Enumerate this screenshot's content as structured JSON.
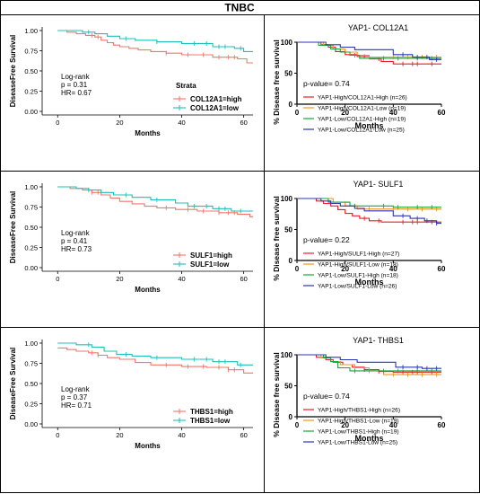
{
  "header": {
    "title": "TNBC"
  },
  "colors": {
    "tcga_high": "#f4756b",
    "tcga_low": "#1fbfb8",
    "red": "#ee1c25",
    "orange": "#f7941d",
    "green": "#16a83a",
    "blue": "#2b35b3"
  },
  "chart_data": [
    {
      "type": "line",
      "subtype": "kaplan-meier",
      "title": "",
      "xlabel": "Months",
      "ylabel": "DiseaseFree Survival",
      "xlim": [
        -5,
        63
      ],
      "ylim": [
        0,
        1.0
      ],
      "xticks": [
        "0",
        "20",
        "40",
        "60"
      ],
      "yticks": [
        "0.00",
        "0.25",
        "0.50",
        "0.75",
        "1.00"
      ],
      "stats": [
        "Log-rank",
        "p = 0.31",
        "HR= 0.67"
      ],
      "legend_title": "Strata",
      "series": [
        {
          "name": "COL12A1=high",
          "color_key": "tcga_high",
          "steps": [
            [
              0,
              1.0
            ],
            [
              3,
              0.98
            ],
            [
              6,
              0.96
            ],
            [
              9,
              0.94
            ],
            [
              12,
              0.92
            ],
            [
              14,
              0.88
            ],
            [
              16,
              0.85
            ],
            [
              18,
              0.82
            ],
            [
              20,
              0.8
            ],
            [
              23,
              0.78
            ],
            [
              26,
              0.76
            ],
            [
              30,
              0.74
            ],
            [
              35,
              0.72
            ],
            [
              40,
              0.7
            ],
            [
              50,
              0.67
            ],
            [
              58,
              0.65
            ],
            [
              61,
              0.6
            ],
            [
              63,
              0.6
            ]
          ]
        },
        {
          "name": "COL12A1=low",
          "color_key": "tcga_low",
          "steps": [
            [
              0,
              1.0
            ],
            [
              8,
              0.98
            ],
            [
              12,
              0.96
            ],
            [
              16,
              0.93
            ],
            [
              20,
              0.9
            ],
            [
              25,
              0.88
            ],
            [
              32,
              0.86
            ],
            [
              40,
              0.84
            ],
            [
              50,
              0.8
            ],
            [
              57,
              0.78
            ],
            [
              60,
              0.74
            ],
            [
              63,
              0.74
            ]
          ]
        }
      ]
    },
    {
      "type": "line",
      "subtype": "kaplan-meier",
      "title": "YAP1- COL12A1",
      "xlabel": "Months",
      "ylabel": "% Disease free survival",
      "xlim": [
        0,
        60
      ],
      "ylim": [
        0,
        100
      ],
      "xticks": [
        "0",
        "20",
        "40",
        "60"
      ],
      "yticks": [
        "0",
        "50",
        "100"
      ],
      "stats": [
        "p-value= 0.74"
      ],
      "series": [
        {
          "name": "YAP1-High/COL12A1-High (n=26)",
          "color_key": "red",
          "steps": [
            [
              0,
              100
            ],
            [
              10,
              96
            ],
            [
              13,
              92
            ],
            [
              16,
              85
            ],
            [
              20,
              80
            ],
            [
              25,
              77
            ],
            [
              30,
              73
            ],
            [
              35,
              69
            ],
            [
              40,
              65
            ],
            [
              60,
              65
            ]
          ]
        },
        {
          "name": "YAP1-High/COL12A1-Low (n=19)",
          "color_key": "orange",
          "steps": [
            [
              0,
              100
            ],
            [
              11,
              95
            ],
            [
              15,
              89
            ],
            [
              20,
              84
            ],
            [
              25,
              79
            ],
            [
              30,
              76
            ],
            [
              60,
              76
            ]
          ]
        },
        {
          "name": "YAP1-Low/COL12A1-High (n=19)",
          "color_key": "green",
          "steps": [
            [
              0,
              100
            ],
            [
              9,
              95
            ],
            [
              14,
              89
            ],
            [
              18,
              84
            ],
            [
              22,
              79
            ],
            [
              26,
              74
            ],
            [
              60,
              74
            ]
          ]
        },
        {
          "name": "YAP1-Low/COL12A1-Low (n=25)",
          "color_key": "blue",
          "steps": [
            [
              0,
              100
            ],
            [
              12,
              96
            ],
            [
              18,
              92
            ],
            [
              24,
              88
            ],
            [
              35,
              88
            ],
            [
              40,
              80
            ],
            [
              48,
              76
            ],
            [
              55,
              72
            ],
            [
              60,
              72
            ]
          ]
        }
      ]
    },
    {
      "type": "line",
      "subtype": "kaplan-meier",
      "title": "",
      "xlabel": "Months",
      "ylabel": "DiseaseFree Survival",
      "xlim": [
        -5,
        63
      ],
      "ylim": [
        0,
        1.0
      ],
      "xticks": [
        "0",
        "20",
        "40",
        "60"
      ],
      "yticks": [
        "0.00",
        "0.25",
        "0.50",
        "0.75",
        "1.00"
      ],
      "stats": [
        "Log-rank",
        "p = 0.41",
        "HR= 0.73"
      ],
      "legend_title": "",
      "series": [
        {
          "name": "SULF1=high",
          "color_key": "tcga_high",
          "steps": [
            [
              0,
              1.0
            ],
            [
              4,
              0.98
            ],
            [
              8,
              0.96
            ],
            [
              11,
              0.93
            ],
            [
              14,
              0.9
            ],
            [
              17,
              0.86
            ],
            [
              20,
              0.82
            ],
            [
              24,
              0.79
            ],
            [
              28,
              0.76
            ],
            [
              32,
              0.74
            ],
            [
              38,
              0.72
            ],
            [
              45,
              0.7
            ],
            [
              52,
              0.68
            ],
            [
              58,
              0.66
            ],
            [
              62,
              0.63
            ],
            [
              63,
              0.63
            ]
          ]
        },
        {
          "name": "SULF1=low",
          "color_key": "tcga_low",
          "steps": [
            [
              0,
              1.0
            ],
            [
              6,
              0.98
            ],
            [
              10,
              0.96
            ],
            [
              14,
              0.93
            ],
            [
              18,
              0.9
            ],
            [
              24,
              0.87
            ],
            [
              30,
              0.84
            ],
            [
              38,
              0.8
            ],
            [
              42,
              0.76
            ],
            [
              50,
              0.73
            ],
            [
              56,
              0.7
            ],
            [
              63,
              0.7
            ]
          ]
        }
      ]
    },
    {
      "type": "line",
      "subtype": "kaplan-meier",
      "title": "YAP1- SULF1",
      "xlabel": "Months",
      "ylabel": "% Disease free survival",
      "xlim": [
        0,
        60
      ],
      "ylim": [
        0,
        100
      ],
      "xticks": [
        "0",
        "20",
        "40",
        "60"
      ],
      "yticks": [
        "0",
        "50",
        "100"
      ],
      "stats": [
        "p-value= 0.22"
      ],
      "series": [
        {
          "name": "YAP1-High/SULF1-High (n=27)",
          "color_key": "red",
          "steps": [
            [
              0,
              100
            ],
            [
              8,
              96
            ],
            [
              11,
              92
            ],
            [
              14,
              88
            ],
            [
              17,
              82
            ],
            [
              20,
              76
            ],
            [
              23,
              72
            ],
            [
              26,
              68
            ],
            [
              30,
              64
            ],
            [
              35,
              62
            ],
            [
              60,
              62
            ]
          ]
        },
        {
          "name": "YAP1-High/SULF1-Low (n=18)",
          "color_key": "orange",
          "steps": [
            [
              0,
              100
            ],
            [
              15,
              94
            ],
            [
              20,
              88
            ],
            [
              25,
              83
            ],
            [
              60,
              83
            ]
          ]
        },
        {
          "name": "YAP1-Low/SULF1-High (n=18)",
          "color_key": "green",
          "steps": [
            [
              0,
              100
            ],
            [
              13,
              94
            ],
            [
              22,
              88
            ],
            [
              35,
              88
            ],
            [
              40,
              86
            ],
            [
              60,
              86
            ]
          ]
        },
        {
          "name": "YAP1-Low/SULF1-Low (n=26)",
          "color_key": "blue",
          "steps": [
            [
              0,
              100
            ],
            [
              10,
              96
            ],
            [
              14,
              92
            ],
            [
              18,
              88
            ],
            [
              24,
              84
            ],
            [
              28,
              80
            ],
            [
              36,
              80
            ],
            [
              40,
              72
            ],
            [
              47,
              68
            ],
            [
              53,
              64
            ],
            [
              58,
              60
            ],
            [
              60,
              60
            ]
          ]
        }
      ]
    },
    {
      "type": "line",
      "subtype": "kaplan-meier",
      "title": "",
      "xlabel": "Months",
      "ylabel": "DiseaseFree Survival",
      "xlim": [
        -5,
        63
      ],
      "ylim": [
        0,
        1.0
      ],
      "xticks": [
        "0",
        "20",
        "40",
        "60"
      ],
      "yticks": [
        "0.00",
        "0.25",
        "0.50",
        "0.75",
        "1.00"
      ],
      "stats": [
        "Log-rank",
        "p = 0.37",
        "HR= 0.71"
      ],
      "legend_title": "",
      "series": [
        {
          "name": "THBS1=high",
          "color_key": "tcga_high",
          "steps": [
            [
              0,
              0.94
            ],
            [
              3,
              0.92
            ],
            [
              6,
              0.9
            ],
            [
              10,
              0.88
            ],
            [
              13,
              0.85
            ],
            [
              16,
              0.82
            ],
            [
              20,
              0.8
            ],
            [
              25,
              0.76
            ],
            [
              30,
              0.73
            ],
            [
              40,
              0.71
            ],
            [
              48,
              0.7
            ],
            [
              55,
              0.67
            ],
            [
              60,
              0.63
            ],
            [
              63,
              0.63
            ]
          ]
        },
        {
          "name": "THBS1=low",
          "color_key": "tcga_low",
          "steps": [
            [
              0,
              1.0
            ],
            [
              6,
              0.98
            ],
            [
              11,
              0.95
            ],
            [
              15,
              0.9
            ],
            [
              19,
              0.86
            ],
            [
              24,
              0.84
            ],
            [
              30,
              0.82
            ],
            [
              40,
              0.8
            ],
            [
              50,
              0.77
            ],
            [
              58,
              0.73
            ],
            [
              63,
              0.73
            ]
          ]
        }
      ]
    },
    {
      "type": "line",
      "subtype": "kaplan-meier",
      "title": "YAP1- THBS1",
      "xlabel": "Months",
      "ylabel": "% Disease free survival",
      "xlim": [
        0,
        60
      ],
      "ylim": [
        0,
        100
      ],
      "xticks": [
        "0",
        "20",
        "40",
        "60"
      ],
      "yticks": [
        "0",
        "50",
        "100"
      ],
      "stats": [
        "p-value= 0.74"
      ],
      "series": [
        {
          "name": "YAP1-High/THBS1-High (n=26)",
          "color_key": "red",
          "steps": [
            [
              0,
              100
            ],
            [
              8,
              96
            ],
            [
              12,
              92
            ],
            [
              15,
              88
            ],
            [
              19,
              84
            ],
            [
              23,
              80
            ],
            [
              28,
              76
            ],
            [
              34,
              73
            ],
            [
              40,
              72
            ],
            [
              60,
              72
            ]
          ]
        },
        {
          "name": "YAP1-High/THBS1-Low (n=19)",
          "color_key": "orange",
          "steps": [
            [
              0,
              100
            ],
            [
              10,
              95
            ],
            [
              14,
              89
            ],
            [
              18,
              84
            ],
            [
              24,
              79
            ],
            [
              30,
              74
            ],
            [
              36,
              68
            ],
            [
              60,
              68
            ]
          ]
        },
        {
          "name": "YAP1-Low/THBS1-High (n=19)",
          "color_key": "green",
          "steps": [
            [
              0,
              100
            ],
            [
              11,
              95
            ],
            [
              14,
              89
            ],
            [
              17,
              79
            ],
            [
              22,
              74
            ],
            [
              60,
              74
            ]
          ]
        },
        {
          "name": "YAP1-Low/THBS1-Low (n=25)",
          "color_key": "blue",
          "steps": [
            [
              0,
              100
            ],
            [
              12,
              96
            ],
            [
              18,
              92
            ],
            [
              25,
              88
            ],
            [
              35,
              88
            ],
            [
              41,
              80
            ],
            [
              52,
              78
            ],
            [
              60,
              78
            ]
          ]
        }
      ]
    }
  ]
}
